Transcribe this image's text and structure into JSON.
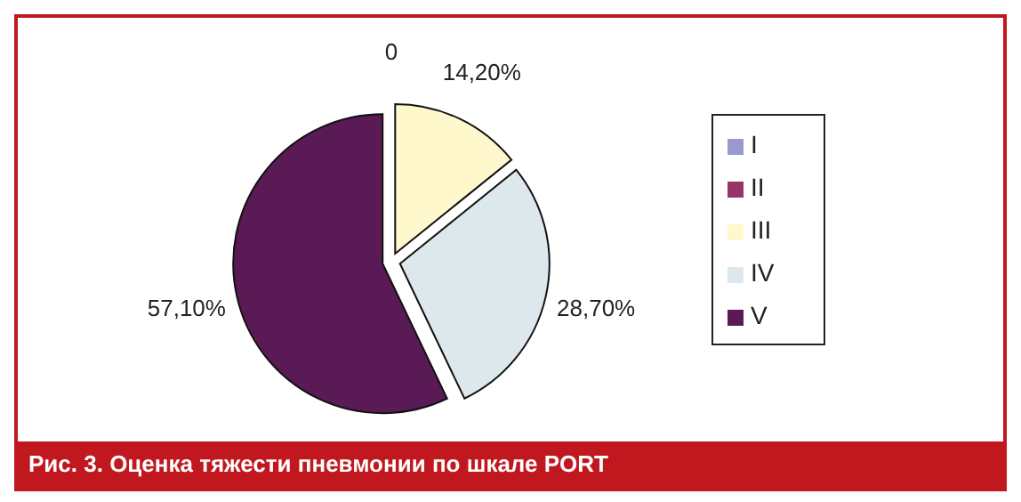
{
  "chart_data": {
    "type": "pie",
    "title": "Рис. 3. Оценка тяжести пневмонии по шкале PORT",
    "categories": [
      "I",
      "II",
      "III",
      "IV",
      "V"
    ],
    "values": [
      0,
      0,
      14.2,
      28.7,
      57.1
    ],
    "colors": [
      "#9999cc",
      "#993366",
      "#fff8cc",
      "#dde8ec",
      "#5a1a55"
    ],
    "value_labels": [
      "0",
      null,
      "14,20%",
      "28,70%",
      "57,10%"
    ],
    "legend": "right"
  }
}
